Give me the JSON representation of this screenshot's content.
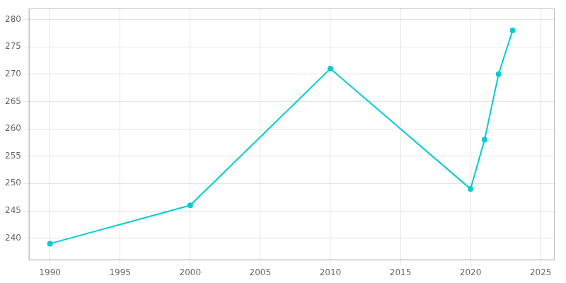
{
  "chart_data": {
    "type": "line",
    "x": [
      1990,
      2000,
      2010,
      2020,
      2021,
      2022,
      2023
    ],
    "values": [
      239,
      246,
      271,
      249,
      258,
      270,
      278
    ],
    "color": "#00CED1",
    "marker": "circle",
    "xlim": [
      1988.5,
      2026
    ],
    "ylim": [
      236,
      282
    ],
    "xticks": [
      1990,
      1995,
      2000,
      2005,
      2010,
      2015,
      2020,
      2025
    ],
    "yticks": [
      240,
      245,
      250,
      255,
      260,
      265,
      270,
      275,
      280
    ],
    "grid": true
  }
}
